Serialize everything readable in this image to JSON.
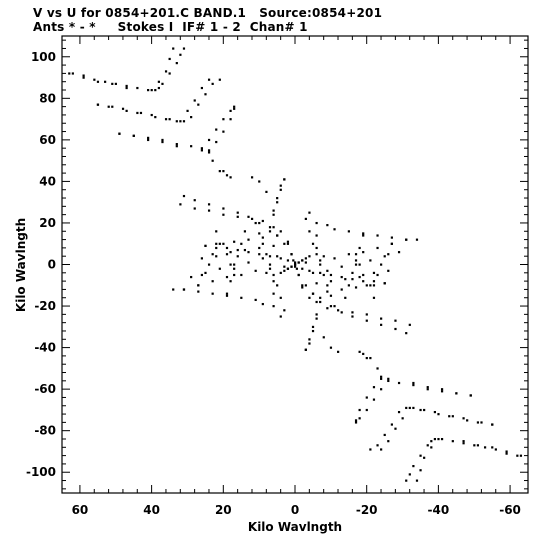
{
  "header": {
    "line1": "V vs U for 0854+201.C BAND.1   Source:0854+201",
    "line2": "Ants * - *     Stokes I  IF# 1 - 2  Chan# 1"
  },
  "chart_data": {
    "type": "scatter",
    "title": "V vs U for 0854+201.C BAND.1   Source:0854+201",
    "subtitle": "Ants * - *     Stokes I  IF# 1 - 2  Chan# 1",
    "xlabel": "Kilo Wavlngth",
    "ylabel": "Kilo Wavlngth",
    "xlim": [
      65,
      -65
    ],
    "ylim": [
      -110,
      110
    ],
    "x_reversed": true,
    "grid": false,
    "xticks": [
      60,
      40,
      20,
      0,
      -20,
      -40,
      -60
    ],
    "xtick_labels": [
      "60",
      "40",
      "20",
      "0",
      "-20",
      "-40",
      "-60"
    ],
    "yticks": [
      100,
      80,
      60,
      40,
      20,
      0,
      -20,
      -40,
      -60,
      -80,
      -100
    ],
    "ytick_labels": [
      "100",
      "80",
      "60",
      "40",
      "20",
      "0",
      "-20",
      "-40",
      "-60",
      "-80",
      "-100"
    ],
    "marker_color": "#000000",
    "series": [
      {
        "points": [
          [
            62,
            92
          ],
          [
            59,
            91
          ],
          [
            56,
            89
          ],
          [
            53,
            88
          ],
          [
            50,
            87
          ],
          [
            47,
            86
          ],
          [
            44,
            85
          ],
          [
            41,
            84
          ],
          [
            39,
            84
          ],
          [
            38,
            85
          ],
          [
            37,
            87
          ],
          [
            35,
            92
          ],
          [
            33,
            97
          ],
          [
            32,
            101
          ],
          [
            31,
            104
          ],
          [
            55,
            77
          ],
          [
            51,
            76
          ],
          [
            47,
            74
          ],
          [
            43,
            73
          ],
          [
            39,
            71
          ],
          [
            35,
            70
          ],
          [
            33,
            69
          ],
          [
            31,
            69
          ],
          [
            29,
            71
          ],
          [
            27,
            77
          ],
          [
            25,
            82
          ],
          [
            23,
            87
          ],
          [
            21,
            89
          ],
          [
            49,
            63
          ],
          [
            45,
            62
          ],
          [
            41,
            61
          ],
          [
            37,
            60
          ],
          [
            33,
            58
          ],
          [
            29,
            57
          ],
          [
            26,
            56
          ],
          [
            24,
            55
          ],
          [
            22,
            59
          ],
          [
            20,
            64
          ],
          [
            18,
            70
          ],
          [
            17,
            75
          ],
          [
            21,
            45
          ],
          [
            19,
            43
          ],
          [
            18,
            42
          ],
          [
            32,
            29
          ],
          [
            28,
            27
          ],
          [
            24,
            26
          ],
          [
            20,
            24
          ],
          [
            16,
            23
          ],
          [
            12,
            22
          ],
          [
            9,
            21
          ],
          [
            6,
            18
          ],
          [
            4,
            16
          ],
          [
            2,
            11
          ],
          [
            1,
            5
          ],
          [
            0.5,
            2
          ],
          [
            6,
            26
          ],
          [
            5,
            32
          ],
          [
            4,
            38
          ],
          [
            3,
            41
          ],
          [
            -4,
            25
          ],
          [
            -6,
            20
          ],
          [
            -9,
            19
          ],
          [
            -11,
            17
          ],
          [
            -15,
            16
          ],
          [
            -19,
            15
          ],
          [
            -23,
            14
          ],
          [
            -27,
            13
          ],
          [
            -31,
            12
          ],
          [
            -34,
            12
          ],
          [
            -6,
            14
          ],
          [
            -6,
            8
          ],
          [
            -8,
            4
          ],
          [
            22,
            16
          ],
          [
            22,
            10
          ],
          [
            23,
            5
          ],
          [
            24,
            0
          ],
          [
            26,
            -5
          ],
          [
            27,
            -10
          ],
          [
            14,
            16
          ],
          [
            15,
            10
          ],
          [
            16,
            4
          ],
          [
            17,
            -2
          ],
          [
            18,
            -8
          ],
          [
            19,
            -14
          ],
          [
            31,
            -12
          ],
          [
            27,
            -10
          ],
          [
            23,
            -8
          ],
          [
            19,
            -6
          ],
          [
            15,
            -5
          ],
          [
            11,
            -3
          ],
          [
            7,
            -2
          ],
          [
            3,
            -1
          ],
          [
            29,
            -6
          ],
          [
            25,
            -4
          ],
          [
            21,
            -2
          ],
          [
            17,
            0
          ],
          [
            13,
            1
          ],
          [
            9,
            3
          ],
          [
            5,
            4
          ],
          [
            1,
            5
          ],
          [
            26,
            3
          ],
          [
            22,
            4
          ],
          [
            18,
            6
          ],
          [
            14,
            7
          ],
          [
            10,
            8
          ],
          [
            6,
            9
          ],
          [
            2,
            10
          ],
          [
            25,
            9
          ],
          [
            21,
            10
          ],
          [
            17,
            11
          ],
          [
            13,
            12
          ],
          [
            9,
            13
          ],
          [
            5,
            14
          ],
          [
            11,
            20
          ],
          [
            10,
            15
          ],
          [
            9,
            10
          ],
          [
            8,
            5
          ],
          [
            7,
            0
          ],
          [
            6,
            -5
          ],
          [
            5,
            -10
          ],
          [
            4,
            -16
          ],
          [
            3,
            -22
          ],
          [
            2,
            -2
          ],
          [
            1,
            -1
          ],
          [
            0,
            0
          ],
          [
            -1,
            1
          ],
          [
            -2,
            2
          ],
          [
            -3,
            3
          ],
          [
            -4,
            4
          ],
          [
            20,
            10
          ],
          [
            19,
            5
          ],
          [
            18,
            0
          ],
          [
            17,
            -5
          ],
          [
            0,
            -1
          ],
          [
            -2,
            -2
          ],
          [
            -4,
            -3
          ],
          [
            -7,
            -4
          ],
          [
            -10,
            -5
          ],
          [
            -13,
            -6
          ],
          [
            -16,
            -7
          ],
          [
            -19,
            -8
          ],
          [
            -22,
            -8
          ],
          [
            -25,
            -9
          ],
          [
            -3,
            -10
          ],
          [
            -5,
            -14
          ],
          [
            -7,
            -16
          ],
          [
            -10,
            -20
          ],
          [
            -13,
            -23
          ],
          [
            -16,
            -25
          ],
          [
            -20,
            -27
          ],
          [
            -24,
            -29
          ],
          [
            -28,
            -31
          ],
          [
            -31,
            -33
          ],
          [
            -7,
            -18
          ],
          [
            -6,
            -24
          ],
          [
            -5,
            -30
          ],
          [
            -4,
            -36
          ],
          [
            -3,
            -41
          ],
          [
            -8,
            -35
          ],
          [
            -10,
            -40
          ],
          [
            -12,
            -42
          ],
          [
            -20,
            -45
          ],
          [
            -23,
            -50
          ],
          [
            -24,
            -54
          ],
          [
            -33,
            -57
          ],
          [
            -37,
            -59
          ],
          [
            -41,
            -60
          ],
          [
            -45,
            -62
          ],
          [
            -49,
            -63
          ],
          [
            -26,
            -55
          ],
          [
            -24,
            -60
          ],
          [
            -22,
            -65
          ],
          [
            -20,
            -70
          ],
          [
            -18,
            -74
          ],
          [
            -17,
            -76
          ],
          [
            -36,
            -70
          ],
          [
            -40,
            -72
          ],
          [
            -44,
            -73
          ],
          [
            -48,
            -75
          ],
          [
            -52,
            -76
          ],
          [
            -55,
            -77
          ],
          [
            -32,
            -69
          ],
          [
            -30,
            -74
          ],
          [
            -28,
            -79
          ],
          [
            -26,
            -85
          ],
          [
            -24,
            -89
          ],
          [
            -47,
            -85
          ],
          [
            -51,
            -87
          ],
          [
            -55,
            -88
          ],
          [
            -59,
            -90
          ],
          [
            -63,
            -92
          ],
          [
            -40,
            -84
          ],
          [
            -38,
            -88
          ],
          [
            -36,
            -93
          ],
          [
            -35,
            -99
          ],
          [
            -34,
            -104
          ]
        ]
      }
    ]
  }
}
